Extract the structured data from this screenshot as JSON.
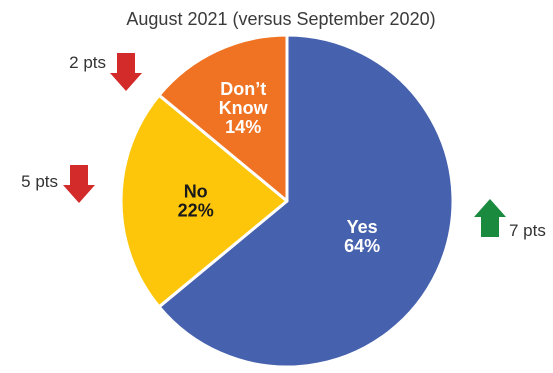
{
  "chart_data": {
    "type": "pie",
    "title": "August 2021 (versus September 2020)",
    "slices": [
      {
        "label": "Yes",
        "value": 64,
        "value_label": "64%",
        "color": "#4661ad",
        "label_color": "#ffffff"
      },
      {
        "label": "No",
        "value": 22,
        "value_label": "22%",
        "color": "#fdc60b",
        "label_color": "#1a1a1a"
      },
      {
        "label": "Don’t Know",
        "value": 14,
        "value_label": "14%",
        "color": "#f07323",
        "label_color": "#ffffff"
      }
    ],
    "changes": [
      {
        "slice": "Yes",
        "direction": "up",
        "text": "7 pts",
        "color": "#1a8a3e"
      },
      {
        "slice": "No",
        "direction": "down",
        "text": "5 pts",
        "color": "#d32a2a"
      },
      {
        "slice": "Don’t Know",
        "direction": "down",
        "text": "2 pts",
        "color": "#d32a2a"
      }
    ]
  }
}
